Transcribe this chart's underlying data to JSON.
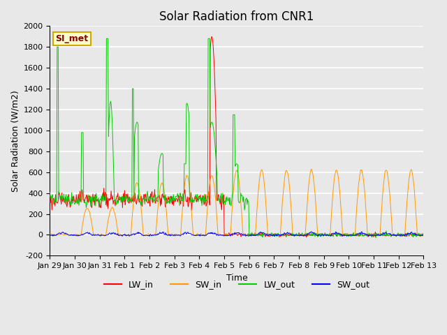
{
  "title": "Solar Radiation from CNR1",
  "xlabel": "Time",
  "ylabel": "Solar Radiation (W/m2)",
  "ylim": [
    -200,
    2000
  ],
  "yticks": [
    -200,
    0,
    200,
    400,
    600,
    800,
    1000,
    1200,
    1400,
    1600,
    1800,
    2000
  ],
  "x_tick_labels": [
    "Jan 29",
    "Jan 30",
    "Jan 31",
    "Feb 1",
    "Feb 2",
    "Feb 3",
    "Feb 4",
    "Feb 5",
    "Feb 6",
    "Feb 7",
    "Feb 8",
    "Feb 9",
    "Feb 10",
    "Feb 11",
    "Feb 12",
    "Feb 13"
  ],
  "colors": {
    "LW_in": "#ff0000",
    "SW_in": "#ff9900",
    "LW_out": "#00cc00",
    "SW_out": "#0000ff"
  },
  "annotation_text": "SI_met",
  "annotation_color": "#8b0000",
  "annotation_bg": "#ffffcc",
  "annotation_edge": "#ccaa00",
  "bg_color": "#e8e8e8",
  "grid_color": "#ffffff",
  "title_fontsize": 12,
  "axis_fontsize": 9,
  "tick_fontsize": 8,
  "legend_fontsize": 9
}
